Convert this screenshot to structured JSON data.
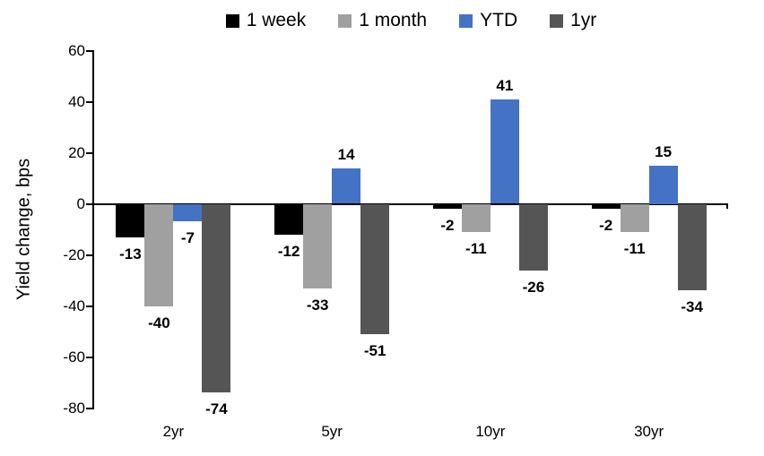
{
  "chart_data": {
    "type": "bar",
    "title": "",
    "xlabel": "",
    "ylabel": "Yield change, bps",
    "categories": [
      "2yr",
      "5yr",
      "10yr",
      "30yr"
    ],
    "series": [
      {
        "name": "1 week",
        "color": "#000000",
        "values": [
          -13,
          -12,
          -2,
          -2
        ]
      },
      {
        "name": "1 month",
        "color": "#A0A0A0",
        "values": [
          -40,
          -33,
          -11,
          -11
        ]
      },
      {
        "name": "YTD",
        "color": "#4472C4",
        "values": [
          -7,
          14,
          41,
          15
        ]
      },
      {
        "name": "1yr",
        "color": "#555555",
        "values": [
          -74,
          -51,
          -26,
          -34
        ]
      }
    ],
    "ylim": [
      -80,
      60
    ],
    "yticks": [
      60,
      40,
      20,
      0,
      -20,
      -40,
      -60,
      -80
    ],
    "data_labels": true,
    "legend_position": "top",
    "grid": false,
    "axis_color": "#000000"
  }
}
